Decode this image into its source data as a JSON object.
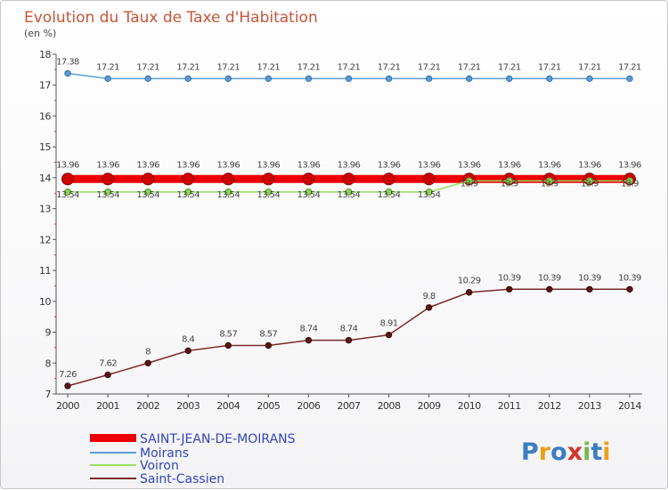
{
  "chart_data": {
    "type": "line",
    "title": "Evolution du Taux de Taxe d'Habitation",
    "subtitle": "(en %)",
    "xlabel": "",
    "ylabel": "",
    "ylim": [
      7,
      18
    ],
    "yticks": [
      7,
      8,
      9,
      10,
      11,
      12,
      13,
      14,
      15,
      16,
      17,
      18
    ],
    "categories": [
      "2000",
      "2001",
      "2002",
      "2003",
      "2004",
      "2005",
      "2006",
      "2007",
      "2008",
      "2009",
      "2010",
      "2011",
      "2012",
      "2013",
      "2014"
    ],
    "grid": false,
    "legend_position": "bottom-left",
    "series": [
      {
        "name": "SAINT-JEAN-DE-MOIRANS",
        "color": "#ee0000",
        "values": [
          13.96,
          13.96,
          13.96,
          13.96,
          13.96,
          13.96,
          13.96,
          13.96,
          13.96,
          13.96,
          13.96,
          13.96,
          13.96,
          13.96,
          13.96
        ],
        "labels": [
          "13.96",
          "13.96",
          "13.96",
          "13.96",
          "13.96",
          "13.96",
          "13.96",
          "13.96",
          "13.96",
          "13.96",
          "13.96",
          "13.96",
          "13.96",
          "13.96",
          "13.96"
        ]
      },
      {
        "name": "Moirans",
        "color": "#5b9bd5",
        "values": [
          17.38,
          17.21,
          17.21,
          17.21,
          17.21,
          17.21,
          17.21,
          17.21,
          17.21,
          17.21,
          17.21,
          17.21,
          17.21,
          17.21,
          17.21
        ],
        "labels": [
          "17.38",
          "17.21",
          "17.21",
          "17.21",
          "17.21",
          "17.21",
          "17.21",
          "17.21",
          "17.21",
          "17.21",
          "17.21",
          "17.21",
          "17.21",
          "17.21",
          "17.21"
        ]
      },
      {
        "name": "Voiron",
        "color": "#99dd66",
        "values": [
          13.54,
          13.54,
          13.54,
          13.54,
          13.54,
          13.54,
          13.54,
          13.54,
          13.54,
          13.54,
          13.9,
          13.9,
          13.9,
          13.9,
          13.9
        ],
        "labels": [
          "13.54",
          "13.54",
          "13.54",
          "13.54",
          "13.54",
          "13.54",
          "13.54",
          "13.54",
          "13.54",
          "13.54",
          "13.9",
          "13.9",
          "13.9",
          "13.9",
          "13.9"
        ]
      },
      {
        "name": "Saint-Cassien",
        "color": "#7a2a2a",
        "values": [
          7.26,
          7.62,
          8,
          8.4,
          8.57,
          8.57,
          8.74,
          8.74,
          8.91,
          9.8,
          10.29,
          10.39,
          10.39,
          10.39,
          10.39
        ],
        "labels": [
          "7.26",
          "7.62",
          "8",
          "8.4",
          "8.57",
          "8.57",
          "8.74",
          "8.74",
          "8.91",
          "9.8",
          "10.29",
          "10.39",
          "10.39",
          "10.39",
          "10.39"
        ]
      }
    ]
  },
  "logo": {
    "letters": [
      "P",
      "r",
      "o",
      "x",
      "i",
      "t",
      "i"
    ],
    "colors": [
      "#3b7dc4",
      "#e8a21a",
      "#3b7dc4",
      "#d8332a",
      "#7ab648",
      "#3b7dc4",
      "#e8a21a"
    ]
  }
}
